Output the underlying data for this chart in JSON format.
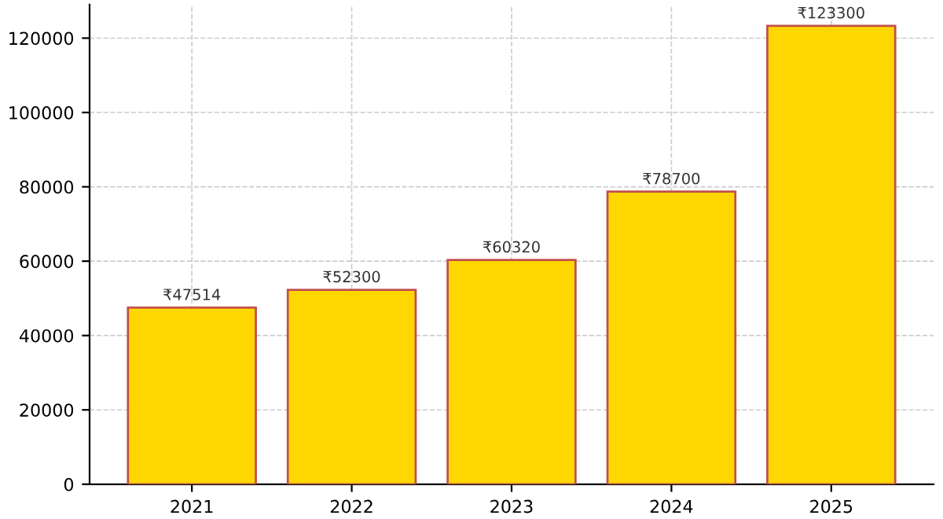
{
  "chart_data": {
    "type": "bar",
    "categories": [
      "2021",
      "2022",
      "2023",
      "2024",
      "2025"
    ],
    "values": [
      47514,
      52300,
      60320,
      78700,
      123300
    ],
    "value_labels": [
      "₹47514",
      "₹52300",
      "₹60320",
      "₹78700",
      "₹123300"
    ],
    "color": "#ffd700",
    "ylim": [
      0,
      129000
    ],
    "yticks": [
      0,
      20000,
      40000,
      60000,
      80000,
      100000,
      120000
    ],
    "grid": true
  }
}
